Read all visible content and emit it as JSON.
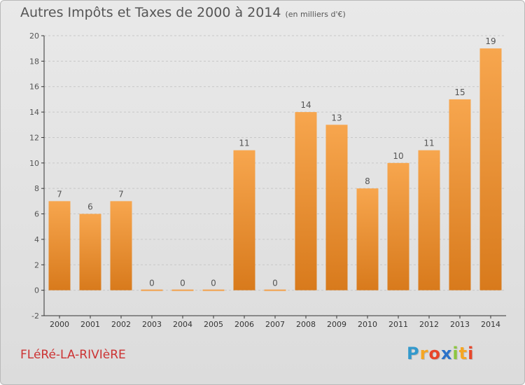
{
  "header": {
    "title": "Autres Impôts et Taxes de 2000 à 2014",
    "unit": "(en milliers d'€)"
  },
  "footer": {
    "commune": "FLéRé-LA-RIVIèRE",
    "brand_letters": [
      "P",
      "r",
      "o",
      "x",
      "i",
      "t",
      "i"
    ],
    "brand_colors": [
      "#3399cc",
      "#f5a623",
      "#e8462a",
      "#2b72c9",
      "#8cc63f",
      "#f5a623",
      "#e8462a"
    ]
  },
  "colors": {
    "bar_top": "#f7a64e",
    "bar_bottom": "#d87a1c",
    "zero_bar": "#f2a04a",
    "axis": "#333333",
    "grid": "#c7c7c7",
    "label": "#555555"
  },
  "chart_data": {
    "type": "bar",
    "title": "Autres Impôts et Taxes de 2000 à 2014",
    "subtitle": "(en milliers d'€)",
    "categories": [
      "2000",
      "2001",
      "2002",
      "2003",
      "2004",
      "2005",
      "2006",
      "2007",
      "2008",
      "2009",
      "2010",
      "2011",
      "2012",
      "2013",
      "2014"
    ],
    "values": [
      7,
      6,
      7,
      0,
      0,
      0,
      11,
      0,
      14,
      13,
      8,
      10,
      11,
      15,
      19
    ],
    "ylim": [
      -2,
      20
    ],
    "yticks": [
      -2,
      0,
      2,
      4,
      6,
      8,
      10,
      12,
      14,
      16,
      18,
      20
    ],
    "grid": "horizontal dashed",
    "legend": "none"
  }
}
